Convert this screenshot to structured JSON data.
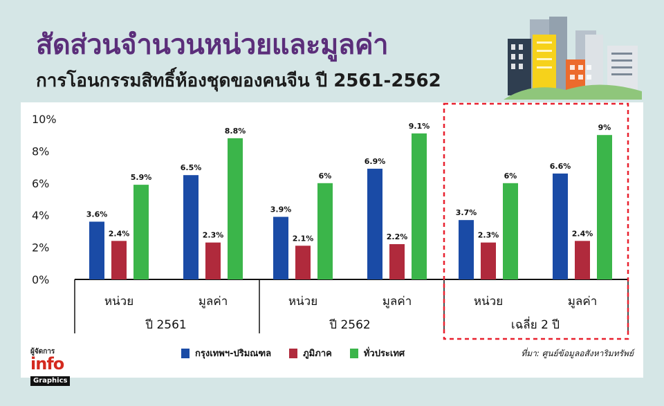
{
  "header": {
    "title": "สัดส่วนจำนวนหน่วยและมูลค่า",
    "subtitle": "การโอนกรรมสิทธิ์ห้องชุดของคนจีน ปี 2561-2562"
  },
  "colors": {
    "bkk": "#1a4ba6",
    "regional": "#b02a3c",
    "nation": "#3bb54a",
    "highlight": "#e8202e"
  },
  "chart_data": {
    "type": "bar",
    "ylim": [
      0,
      10
    ],
    "yticks": [
      "0%",
      "2%",
      "4%",
      "6%",
      "8%",
      "10%"
    ],
    "groups": [
      {
        "label": "ปี 2561",
        "categories": [
          "หน่วย",
          "มูลค่า"
        ]
      },
      {
        "label": "ปี 2562",
        "categories": [
          "หน่วย",
          "มูลค่า"
        ]
      },
      {
        "label": "เฉลี่ย 2 ปี",
        "categories": [
          "หน่วย",
          "มูลค่า"
        ],
        "highlighted": true
      }
    ],
    "series": [
      {
        "name": "กรุงเทพฯ-ปริมณฑล",
        "values": [
          3.6,
          6.5,
          3.9,
          6.9,
          3.7,
          6.6
        ],
        "labels": [
          "3.6%",
          "6.5%",
          "3.9%",
          "6.9%",
          "3.7%",
          "6.6%"
        ]
      },
      {
        "name": "ภูมิภาค",
        "values": [
          2.4,
          2.3,
          2.1,
          2.2,
          2.3,
          2.4
        ],
        "labels": [
          "2.4%",
          "2.3%",
          "2.1%",
          "2.2%",
          "2.3%",
          "2.4%"
        ]
      },
      {
        "name": "ทั่วประเทศ",
        "values": [
          5.9,
          8.8,
          6.0,
          9.1,
          6.0,
          9.0
        ],
        "labels": [
          "5.9%",
          "8.8%",
          "6%",
          "9.1%",
          "6%",
          "9%"
        ]
      }
    ]
  },
  "source": "ที่มา: ศูนย์ข้อมูลอสังหาริมทรัพย์",
  "logo": {
    "top": "ผู้จัดการ",
    "main": "info",
    "bottom": "Graphics"
  }
}
